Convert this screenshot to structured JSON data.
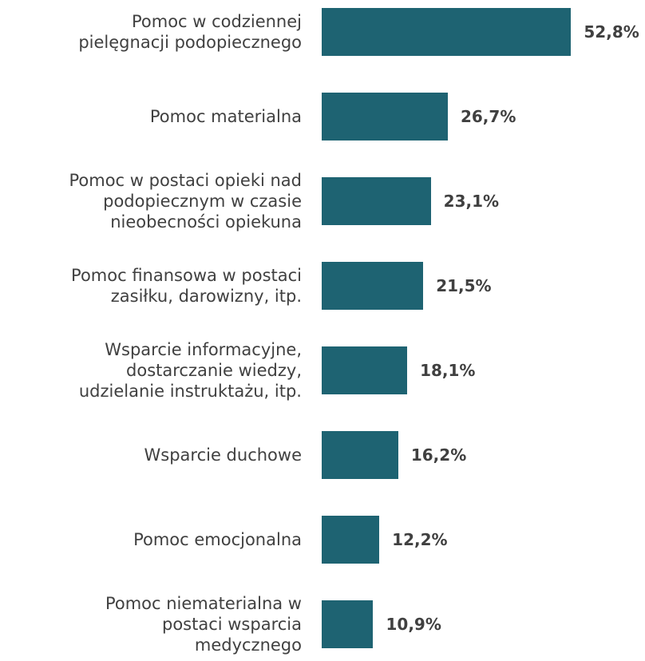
{
  "chart_data": {
    "type": "bar",
    "orientation": "horizontal",
    "categories": [
      "Pomoc w codziennej\npielęgnacji podopiecznego",
      "Pomoc materialna",
      "Pomoc w postaci opieki nad\npodopiecznym w czasie\nnieobecności opiekuna",
      "Pomoc finansowa w postaci\nzasiłku, darowizny, itp.",
      "Wsparcie informacyjne,\ndostarczanie wiedzy,\nudzielanie instruktażu, itp.",
      "Wsparcie duchowe",
      "Pomoc emocjonalna",
      "Pomoc niematerialna w\npostaci wsparcia\nmedycznego"
    ],
    "values": [
      52.8,
      26.7,
      23.1,
      21.5,
      18.1,
      16.2,
      12.2,
      10.9
    ],
    "value_labels": [
      "52,8%",
      "26,7%",
      "23,1%",
      "21,5%",
      "18,1%",
      "16,2%",
      "12,2%",
      "10,9%"
    ],
    "color": "#1e6372",
    "xlim": [
      0,
      60
    ]
  }
}
